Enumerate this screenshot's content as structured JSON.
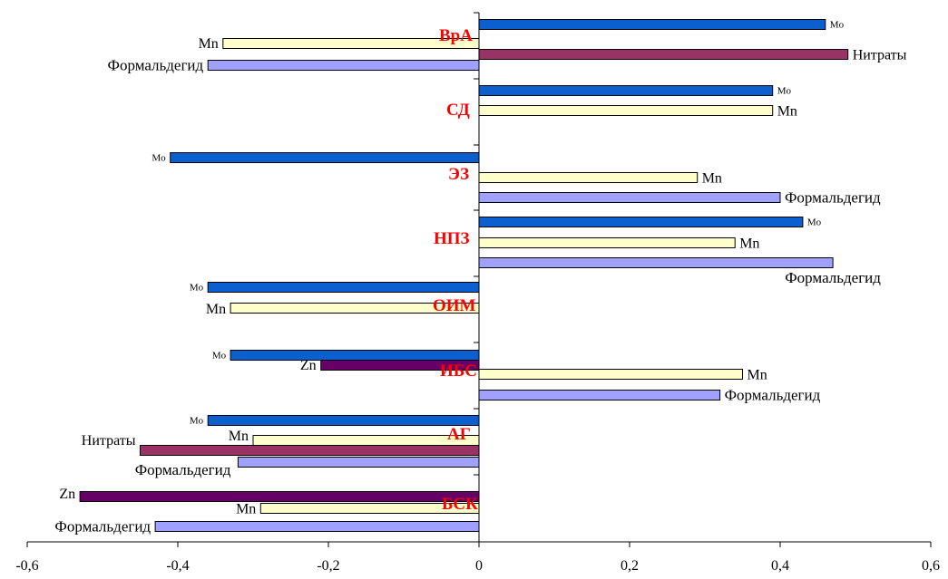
{
  "chart_data": {
    "type": "bar",
    "orientation": "horizontal",
    "title": "",
    "xlabel": "",
    "ylabel": "",
    "xlim": [
      -0.6,
      0.6
    ],
    "x_ticks": [
      "-0,6",
      "-0,4",
      "-0,2",
      "0",
      "0,2",
      "0,4",
      "0,6"
    ],
    "grid": false,
    "legend": "none",
    "colors": {
      "Mo": "#0b5fcf",
      "Mn": "#ffffcc",
      "Формальдегид": "#a0a0ff",
      "Нитраты": "#993366",
      "Zn": "#660066",
      "category_label": "#ff0000"
    },
    "groups": [
      {
        "category": "ВрА",
        "bars": [
          {
            "name": "Mo",
            "value": 0.46
          },
          {
            "name": "Mn",
            "value": -0.34
          },
          {
            "name": "Нитраты",
            "value": 0.49
          },
          {
            "name": "Формальдегид",
            "value": -0.36
          }
        ]
      },
      {
        "category": "СД",
        "bars": [
          {
            "name": "Mo",
            "value": 0.39
          },
          {
            "name": "Mn",
            "value": 0.39
          }
        ]
      },
      {
        "category": "ЭЗ",
        "bars": [
          {
            "name": "Mo",
            "value": -0.41
          },
          {
            "name": "Mn",
            "value": 0.29
          },
          {
            "name": "Формальдегид",
            "value": 0.4
          }
        ]
      },
      {
        "category": "НПЗ",
        "bars": [
          {
            "name": "Mo",
            "value": 0.43
          },
          {
            "name": "Mn",
            "value": 0.34
          },
          {
            "name": "Формальдегид",
            "value": 0.47
          }
        ]
      },
      {
        "category": "ОИМ",
        "bars": [
          {
            "name": "Mo",
            "value": -0.36
          },
          {
            "name": "Mn",
            "value": -0.33
          }
        ]
      },
      {
        "category": "ИБС",
        "bars": [
          {
            "name": "Mo",
            "value": -0.33
          },
          {
            "name": "Zn",
            "value": -0.21
          },
          {
            "name": "Mn",
            "value": 0.35
          },
          {
            "name": "Формальдегид",
            "value": 0.32
          }
        ]
      },
      {
        "category": "АГ",
        "bars": [
          {
            "name": "Mo",
            "value": -0.36
          },
          {
            "name": "Mn",
            "value": -0.3
          },
          {
            "name": "Нитраты",
            "value": -0.45
          },
          {
            "name": "Формальдегид",
            "value": -0.32
          }
        ]
      },
      {
        "category": "БСК",
        "bars": [
          {
            "name": "Zn",
            "value": -0.53
          },
          {
            "name": "Mn",
            "value": -0.29
          },
          {
            "name": "Формальдегид",
            "value": -0.43
          }
        ]
      }
    ]
  }
}
